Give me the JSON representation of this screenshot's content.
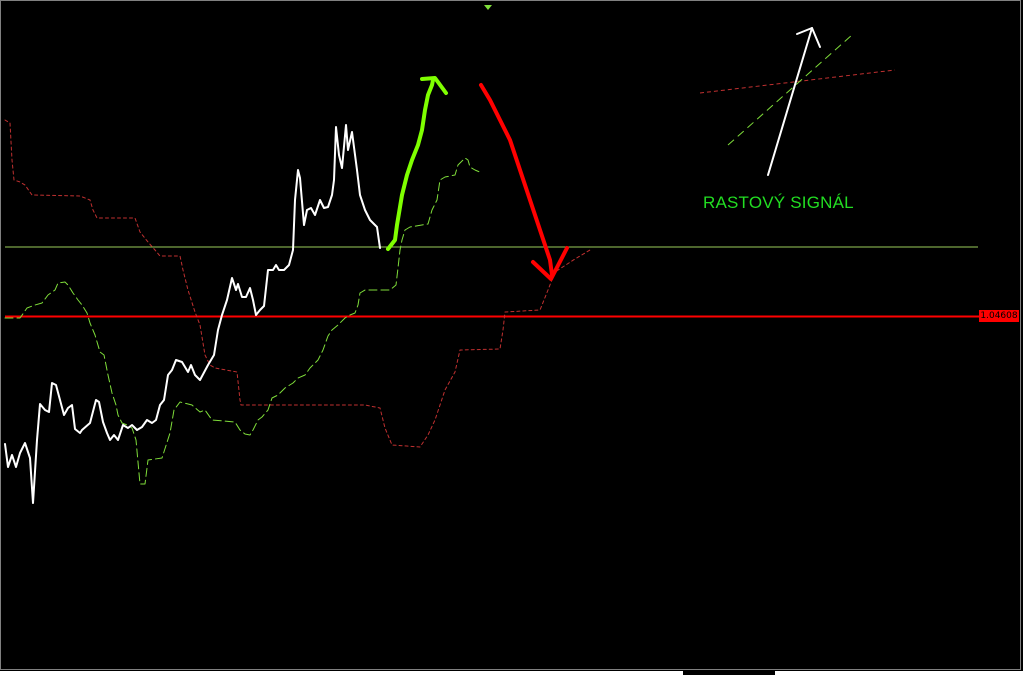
{
  "chart_data": {
    "type": "line",
    "title": "",
    "current_price": "1.04608",
    "annotation": "RASTOVÝ SIGNÁL",
    "grid": false,
    "series_colors": {
      "price": "#ffffff",
      "lagging_line": "#7fdd3a",
      "upper_line": "#c03030"
    },
    "drawings": {
      "price_level_line_color": "#ff0000",
      "horizontal_line_color": "#9acd5a",
      "up_arrow_color": "#7fff00",
      "down_arrow_color": "#ff0000"
    }
  },
  "colors": {
    "background": "#000000",
    "annotation": "#22dd22"
  }
}
